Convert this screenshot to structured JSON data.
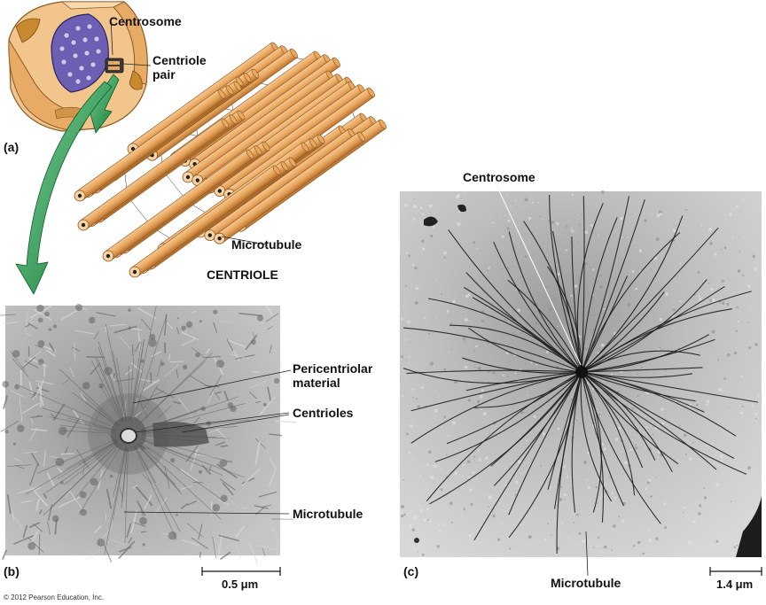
{
  "panel_a": {
    "letter": "(a)",
    "centrosome_label": "Centrosome",
    "centriole_pair_label_line1": "Centriole",
    "centriole_pair_label_line2": "pair",
    "microtubule_label": "Microtubule",
    "centriole_label": "CENTRIOLE"
  },
  "panel_b": {
    "letter": "(b)",
    "pericentriolar_label_line1": "Pericentriolar",
    "pericentriolar_label_line2": "material",
    "centrioles_label": "Centrioles",
    "microtubule_label": "Microtubule",
    "scale_label": "0.5 μm"
  },
  "panel_c": {
    "letter": "(c)",
    "centrosome_label": "Centrosome",
    "microtubule_label": "Microtubule",
    "scale_label": "1.4 μm"
  },
  "copyright": "© 2012 Pearson Education, Inc.",
  "colors": {
    "tubule": "#e9a860",
    "tubule_dark": "#b36f2c",
    "nucleus": "#6d5fb4",
    "cell": "#f2c58c",
    "arrow_green": "#1f9a4a",
    "micrograph_b": "#b9b9b9",
    "micrograph_c": "#cfcfcf"
  }
}
